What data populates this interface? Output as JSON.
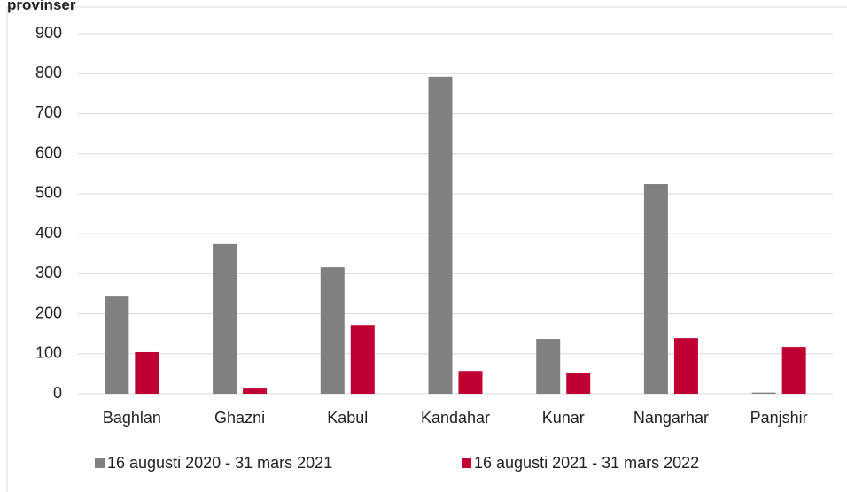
{
  "chart_data": {
    "type": "bar",
    "title": "provinser",
    "categories": [
      "Baghlan",
      "Ghazni",
      "Kabul",
      "Kandahar",
      "Kunar",
      "Nangarhar",
      "Panjshir"
    ],
    "series": [
      {
        "name": "16 augusti 2020 - 31 mars 2021",
        "color": "#808080",
        "values": [
          243,
          374,
          316,
          792,
          137,
          524,
          3
        ]
      },
      {
        "name": "16 augusti 2021 - 31 mars 2022",
        "color": "#c00033",
        "values": [
          104,
          13,
          172,
          57,
          52,
          139,
          117
        ]
      }
    ],
    "ylim": [
      0,
      900
    ],
    "yticks": [
      0,
      100,
      200,
      300,
      400,
      500,
      600,
      700,
      800,
      900
    ],
    "grid": true
  }
}
